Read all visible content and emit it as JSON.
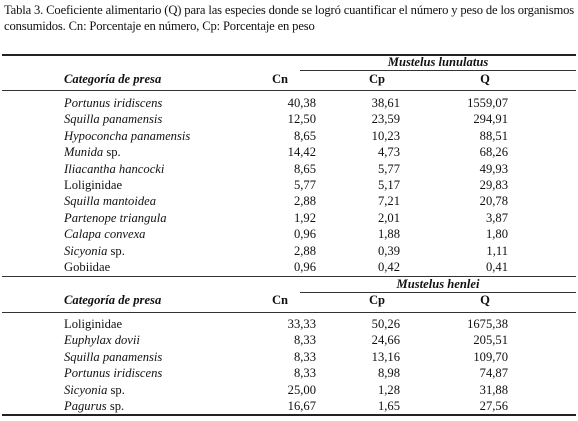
{
  "caption": "Tabla 3. Coeficiente alimentario (Q) para las especies donde se logró cuantificar el número y peso de los  organismos consumidos. Cn: Porcentaje en número, Cp: Porcentaje en peso",
  "headers": {
    "category": "Categoría de presa",
    "cn": "Cn",
    "cp": "Cp",
    "q": "Q"
  },
  "sections": [
    {
      "title": "Mustelus lunulatus",
      "rows": [
        {
          "name": "Portunus iridiscens",
          "suffix": "",
          "italic": true,
          "cn": "40,38",
          "cp": "38,61",
          "q": "1559,07"
        },
        {
          "name": "Squilla panamensis",
          "suffix": "",
          "italic": true,
          "cn": "12,50",
          "cp": "23,59",
          "q": "294,91"
        },
        {
          "name": "Hypoconcha panamensis",
          "suffix": "",
          "italic": true,
          "cn": "8,65",
          "cp": "10,23",
          "q": "88,51"
        },
        {
          "name": "Munida",
          "suffix": " sp.",
          "italic": true,
          "cn": "14,42",
          "cp": "4,73",
          "q": "68,26"
        },
        {
          "name": "Iliacantha hancocki",
          "suffix": "",
          "italic": true,
          "cn": "8,65",
          "cp": "5,77",
          "q": "49,93"
        },
        {
          "name": "Loliginidae",
          "suffix": "",
          "italic": false,
          "cn": "5,77",
          "cp": "5,17",
          "q": "29,83"
        },
        {
          "name": "Squilla mantoidea",
          "suffix": "",
          "italic": true,
          "cn": "2,88",
          "cp": "7,21",
          "q": "20,78"
        },
        {
          "name": "Partenope triangula",
          "suffix": "",
          "italic": true,
          "cn": "1,92",
          "cp": "2,01",
          "q": "3,87"
        },
        {
          "name": "Calapa convexa",
          "suffix": "",
          "italic": true,
          "cn": "0,96",
          "cp": "1,88",
          "q": "1,80"
        },
        {
          "name": "Sicyonia",
          "suffix": " sp.",
          "italic": true,
          "cn": "2,88",
          "cp": "0,39",
          "q": "1,11"
        },
        {
          "name": "Gobiidae",
          "suffix": "",
          "italic": false,
          "cn": "0,96",
          "cp": "0,42",
          "q": "0,41"
        }
      ]
    },
    {
      "title": "Mustelus henlei",
      "rows": [
        {
          "name": "Loliginidae",
          "suffix": "",
          "italic": false,
          "cn": "33,33",
          "cp": "50,26",
          "q": "1675,38"
        },
        {
          "name": "Euphylax dovii",
          "suffix": "",
          "italic": true,
          "cn": "8,33",
          "cp": "24,66",
          "q": "205,51"
        },
        {
          "name": "Squilla panamensis",
          "suffix": "",
          "italic": true,
          "cn": "8,33",
          "cp": "13,16",
          "q": "109,70"
        },
        {
          "name": "Portunus iridiscens",
          "suffix": "",
          "italic": true,
          "cn": "8,33",
          "cp": "8,98",
          "q": "74,87"
        },
        {
          "name": "Sicyonia",
          "suffix": " sp.",
          "italic": true,
          "cn": "25,00",
          "cp": "1,28",
          "q": "31,88"
        },
        {
          "name": "Pagurus",
          "suffix": " sp.",
          "italic": true,
          "cn": "16,67",
          "cp": "1,65",
          "q": "27,56"
        }
      ]
    }
  ]
}
